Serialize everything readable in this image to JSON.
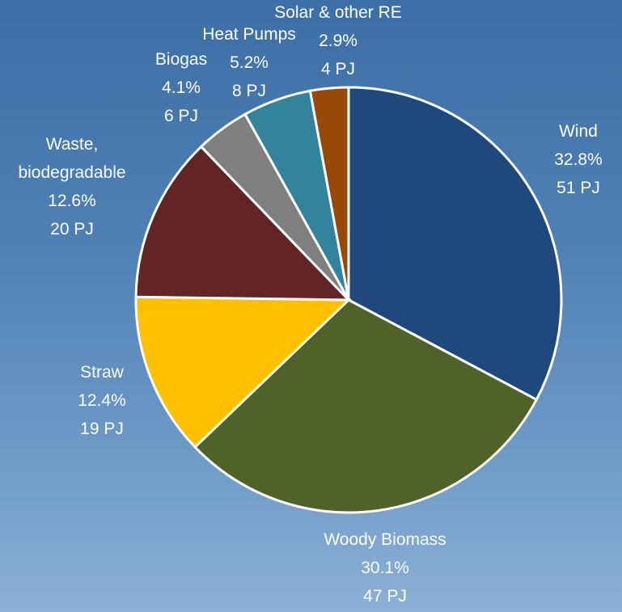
{
  "chart_data": {
    "type": "pie",
    "categories": [
      "Wind",
      "Woody Biomass",
      "Straw",
      "Waste, biodegradable",
      "Biogas",
      "Heat Pumps",
      "Solar & other RE"
    ],
    "values": [
      32.8,
      30.1,
      12.4,
      12.6,
      4.1,
      5.2,
      2.9
    ],
    "value_labels": [
      "32.8%",
      "30.1%",
      "12.4%",
      "12.6%",
      "4.1%",
      "5.2%",
      "2.9%"
    ],
    "energy_labels": [
      "51 PJ",
      "47 PJ",
      "19 PJ",
      "20 PJ",
      "6 PJ",
      "8 PJ",
      "4 PJ"
    ],
    "colors": [
      "#1f497d",
      "#4f6228",
      "#ffc000",
      "#632523",
      "#7f7f7f",
      "#31849b",
      "#984807"
    ]
  }
}
